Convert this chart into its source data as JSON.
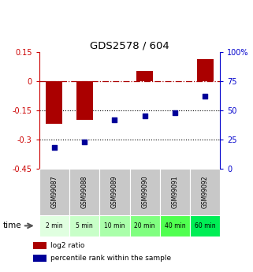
{
  "title": "GDS2578 / 604",
  "categories": [
    "GSM99087",
    "GSM99088",
    "GSM99089",
    "GSM99090",
    "GSM99091",
    "GSM99092"
  ],
  "time_labels": [
    "2 min",
    "5 min",
    "10 min",
    "20 min",
    "40 min",
    "60 min"
  ],
  "log2_ratio": [
    -0.22,
    -0.2,
    0.0,
    0.05,
    -0.003,
    0.11
  ],
  "percentile_rank": [
    18,
    23,
    42,
    45,
    48,
    62
  ],
  "ylim_left": [
    -0.45,
    0.15
  ],
  "ylim_right": [
    0,
    100
  ],
  "yticks_left": [
    0.15,
    0.0,
    -0.15,
    -0.3,
    -0.45
  ],
  "ytick_left_labels": [
    "0.15",
    "0",
    "-0.15",
    "-0.3",
    "-0.45"
  ],
  "yticks_right": [
    100,
    75,
    50,
    25,
    0
  ],
  "ytick_right_labels": [
    "100%",
    "75",
    "50",
    "25",
    "0"
  ],
  "bar_color": "#aa0000",
  "dot_color": "#000099",
  "hline_color": "#aa0000",
  "dotted_lines": [
    -0.15,
    -0.3
  ],
  "bar_width": 0.55,
  "gsm_bg_color": "#c8c8c8",
  "time_bg_colors": [
    "#e0ffe0",
    "#c8ffc8",
    "#aaffaa",
    "#80ff80",
    "#50ff50",
    "#00ee55"
  ],
  "legend_labels": [
    "log2 ratio",
    "percentile rank within the sample"
  ],
  "legend_colors": [
    "#aa0000",
    "#000099"
  ]
}
